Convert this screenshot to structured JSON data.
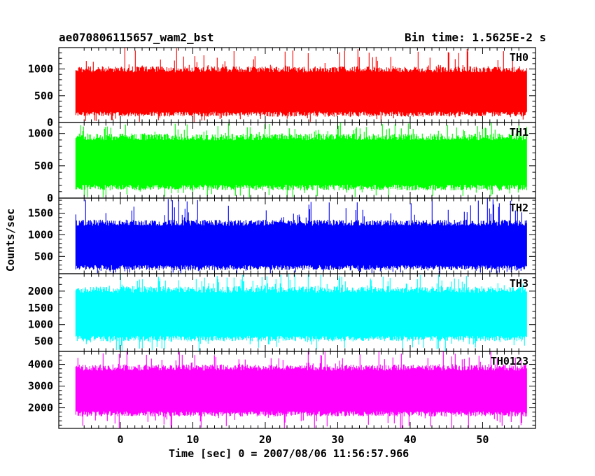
{
  "header": {
    "title_left": "ae070806115657_wam2_bst",
    "title_right": "Bin time: 1.5625E-2 s"
  },
  "axes": {
    "ylabel": "Counts/sec",
    "xlabel": "Time [sec] 0 = 2007/08/06 11:56:57.966"
  },
  "chart_data": {
    "type": "line",
    "x_range": [
      -8.5,
      57.3
    ],
    "x_ticks": [
      0,
      10,
      20,
      30,
      40,
      50
    ],
    "data_x_range": [
      -6.2,
      56.1
    ],
    "bin_time": 0.015625,
    "grid": false,
    "panels": [
      {
        "name": "TH0",
        "color": "#ff0000",
        "ylim": [
          0,
          1400
        ],
        "yticks": [
          0,
          500,
          1000
        ],
        "typical_range": [
          110,
          1050
        ],
        "spike_max": 1400
      },
      {
        "name": "TH1",
        "color": "#00ff00",
        "ylim": [
          0,
          1170
        ],
        "yticks": [
          0,
          500,
          1000
        ],
        "typical_range": [
          120,
          1000
        ],
        "spike_max": 1170
      },
      {
        "name": "TH2",
        "color": "#0000ff",
        "ylim": [
          100,
          1850
        ],
        "yticks": [
          500,
          1000,
          1500
        ],
        "typical_range": [
          180,
          1350
        ],
        "spike_max": 1850
      },
      {
        "name": "TH3",
        "color": "#00ffff",
        "ylim": [
          200,
          2520
        ],
        "yticks": [
          500,
          1000,
          1500,
          2000
        ],
        "typical_range": [
          500,
          2150
        ],
        "spike_max": 2520
      },
      {
        "name": "TH0123",
        "color": "#ff00ff",
        "ylim": [
          1050,
          4600
        ],
        "yticks": [
          2000,
          3000,
          4000
        ],
        "typical_range": [
          1600,
          4000
        ],
        "spike_max": 4600
      }
    ]
  }
}
